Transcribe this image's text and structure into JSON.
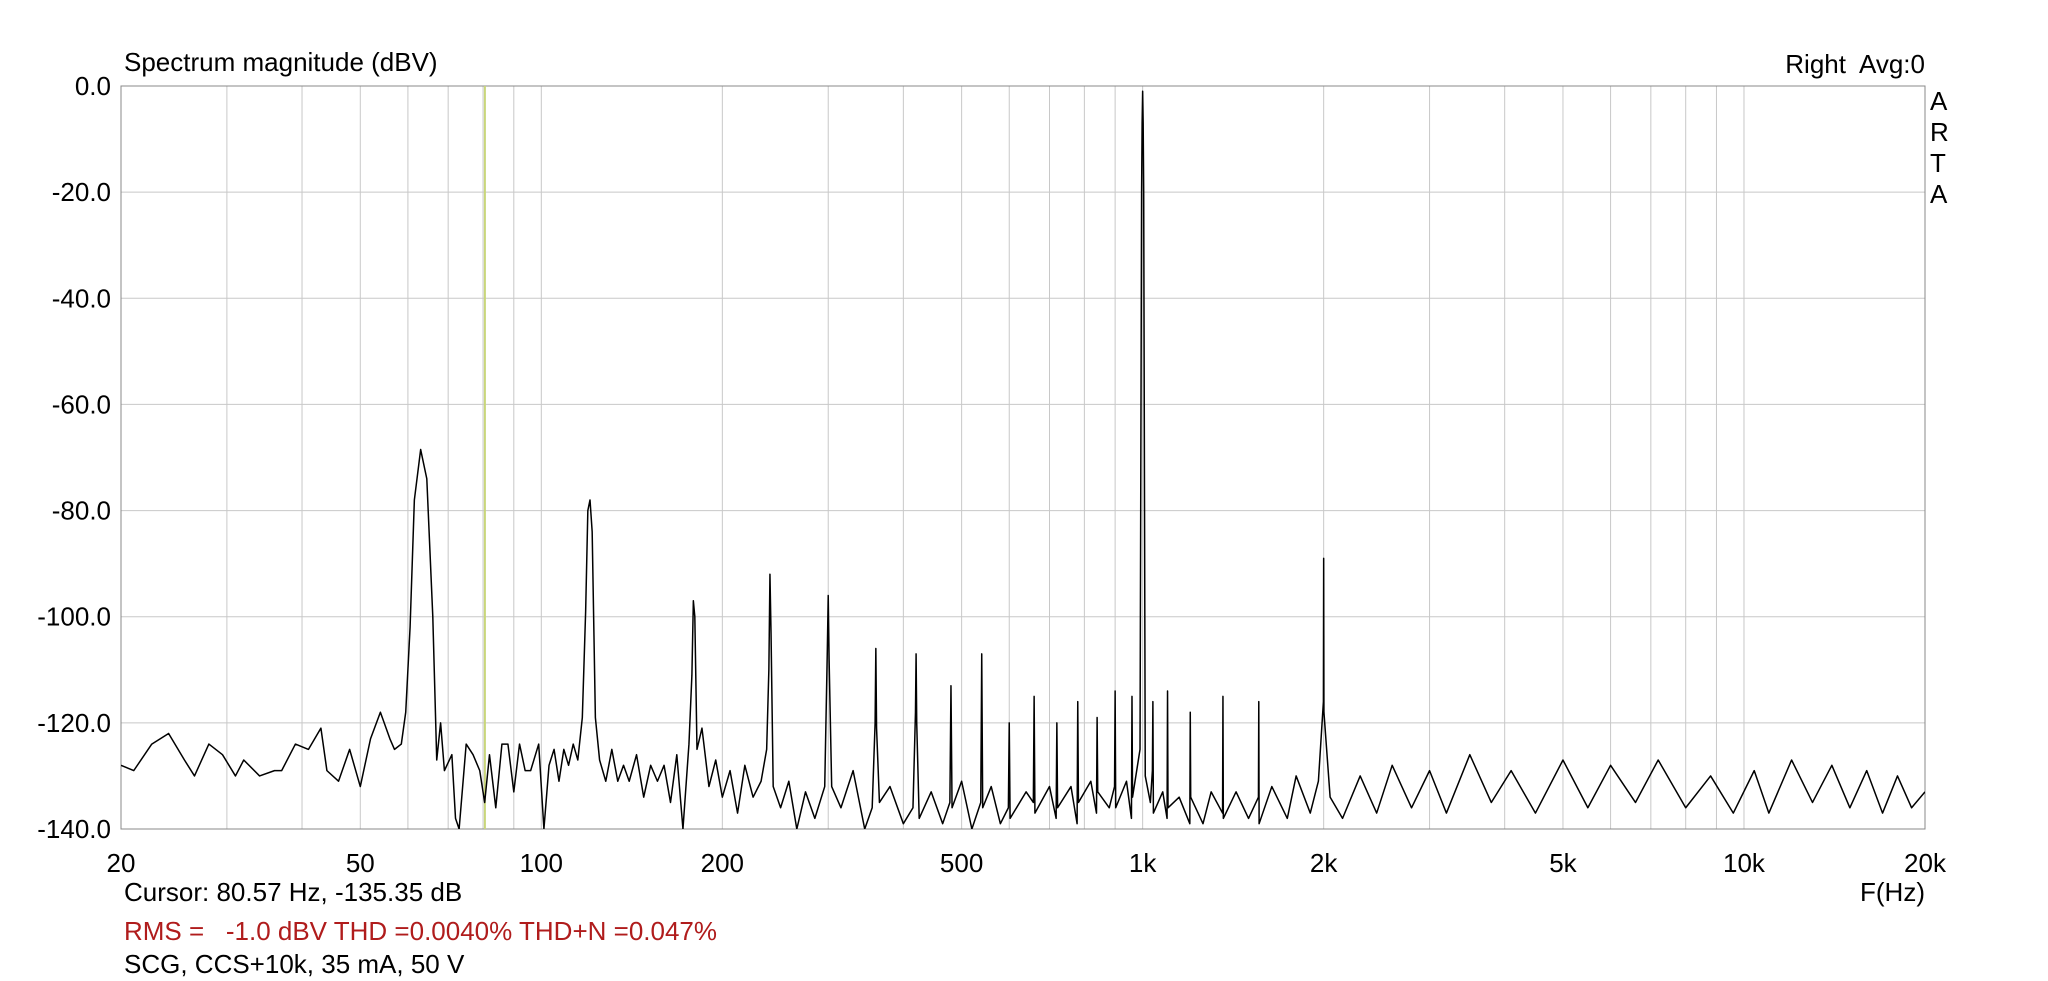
{
  "chart_data": {
    "type": "line",
    "title": "Spectrum magnitude (dBV)",
    "channel_label": "Right  Avg:0",
    "brand": [
      "A",
      "R",
      "T",
      "A"
    ],
    "xlabel": "F(Hz)",
    "xscale": "log",
    "grid": true,
    "color": "#000000",
    "xlim": [
      20,
      20000
    ],
    "ylim": [
      -140,
      0
    ],
    "xticks": [
      20,
      50,
      100,
      200,
      500,
      {
        "value": 1000,
        "label": "1k"
      },
      {
        "value": 2000,
        "label": "2k"
      },
      {
        "value": 5000,
        "label": "5k"
      },
      {
        "value": 10000,
        "label": "10k"
      },
      {
        "value": 20000,
        "label": "20k"
      }
    ],
    "xgrid_minor": [
      30,
      40,
      60,
      70,
      80,
      90,
      300,
      400,
      600,
      700,
      800,
      900,
      3000,
      4000,
      6000,
      7000,
      8000,
      9000
    ],
    "yticks": [
      {
        "value": 0,
        "label": "0.0"
      },
      {
        "value": -20,
        "label": "-20.0"
      },
      {
        "value": -40,
        "label": "-40.0"
      },
      {
        "value": -60,
        "label": "-60.0"
      },
      {
        "value": -80,
        "label": "-80.0"
      },
      {
        "value": -100,
        "label": "-100.0"
      },
      {
        "value": -120,
        "label": "-120.0"
      },
      {
        "value": -140,
        "label": "-140.0"
      }
    ],
    "cursor": {
      "x": 80.57,
      "color": "#c9d67a",
      "label": "Cursor: 80.57 Hz, -135.35 dB"
    },
    "measurement": "RMS =   -1.0 dBV THD =0.0040% THD+N =0.047%",
    "measurement_color": "#b01c1c",
    "note": "SCG, CCS+10k, 35 mA, 50 V",
    "x": [
      20,
      21,
      22.5,
      24,
      25.5,
      26.5,
      28,
      29.5,
      31,
      32,
      34,
      36,
      37,
      39,
      41,
      43,
      44,
      46,
      48,
      50,
      52,
      54,
      56,
      57,
      58.5,
      59.5,
      60.5,
      61.5,
      63,
      64.5,
      66,
      67,
      68,
      69,
      71,
      72,
      73,
      75,
      77,
      79,
      80.5,
      82,
      84,
      86,
      88,
      90,
      92,
      94,
      96,
      99,
      101,
      103,
      105,
      107,
      109,
      111,
      113,
      115,
      117,
      118.5,
      119.5,
      120.5,
      121.5,
      123,
      125,
      128,
      131,
      134,
      137,
      140,
      144,
      148,
      152,
      156,
      160,
      164,
      168,
      172,
      176,
      178,
      179,
      180,
      181.5,
      185,
      190,
      195,
      200,
      206,
      212,
      218,
      225,
      232,
      237,
      239,
      240,
      241,
      243,
      250,
      258,
      266,
      275,
      285,
      296,
      299,
      300,
      301,
      304,
      315,
      330,
      345,
      355,
      359,
      360,
      361,
      365,
      380,
      400,
      415,
      419,
      420,
      421,
      425,
      445,
      465,
      478,
      480,
      482,
      500,
      520,
      538,
      540,
      542,
      560,
      580,
      598,
      600,
      602,
      640,
      658,
      660,
      662,
      700,
      718,
      720,
      722,
      760,
      778,
      780,
      782,
      820,
      838,
      840,
      842,
      880,
      898,
      900,
      902,
      940,
      958,
      960,
      962,
      990,
      996,
      998,
      1000,
      1002,
      1004,
      1010,
      1030,
      1038,
      1040,
      1042,
      1080,
      1098,
      1100,
      1102,
      1150,
      1198,
      1200,
      1202,
      1260,
      1300,
      1358,
      1360,
      1362,
      1430,
      1500,
      1558,
      1560,
      1562,
      1640,
      1740,
      1800,
      1900,
      1960,
      1998,
      2000,
      2002,
      2050,
      2150,
      2300,
      2450,
      2600,
      2800,
      3000,
      3200,
      3500,
      3800,
      4100,
      4500,
      5000,
      5500,
      6000,
      6600,
      7200,
      8000,
      8800,
      9600,
      10400,
      11000,
      12000,
      13000,
      14000,
      15000,
      16000,
      17000,
      18000,
      19000,
      20000
    ],
    "values": [
      -128,
      -129,
      -124,
      -122,
      -127,
      -130,
      -124,
      -126,
      -130,
      -127,
      -130,
      -129,
      -129,
      -124,
      -125,
      -121,
      -129,
      -131,
      -125,
      -132,
      -123,
      -118,
      -123,
      -125,
      -124,
      -118,
      -102,
      -78,
      -68.5,
      -74,
      -100,
      -127,
      -120,
      -129,
      -126,
      -138,
      -140,
      -124,
      -126,
      -129,
      -135,
      -126,
      -136,
      -124,
      -124,
      -133,
      -124,
      -129,
      -129,
      -124,
      -140,
      -128,
      -125,
      -131,
      -125,
      -128,
      -124,
      -127,
      -119,
      -99,
      -80,
      -78,
      -84,
      -119,
      -127,
      -131,
      -125,
      -131,
      -128,
      -131,
      -126,
      -134,
      -128,
      -131,
      -128,
      -135,
      -126,
      -140,
      -124,
      -111,
      -97,
      -100,
      -125,
      -121,
      -132,
      -127,
      -134,
      -129,
      -137,
      -128,
      -134,
      -131,
      -125,
      -110,
      -92,
      -103,
      -132,
      -136,
      -131,
      -140,
      -133,
      -138,
      -132,
      -106,
      -96,
      -108,
      -132,
      -136,
      -129,
      -140,
      -136,
      -120,
      -106,
      -121,
      -135,
      -132,
      -139,
      -136,
      -118,
      -107,
      -120,
      -138,
      -133,
      -139,
      -135,
      -113,
      -136,
      -131,
      -140,
      -135,
      -107,
      -136,
      -132,
      -139,
      -136,
      -120,
      -138,
      -133,
      -135,
      -115,
      -137,
      -132,
      -138,
      -120,
      -136,
      -132,
      -139,
      -116,
      -135,
      -131,
      -137,
      -119,
      -133,
      -136,
      -132,
      -114,
      -136,
      -131,
      -138,
      -115,
      -134,
      -125,
      -20,
      -7,
      -1,
      -7,
      -20,
      -130,
      -135,
      -129,
      -116,
      -137,
      -133,
      -138,
      -114,
      -136,
      -134,
      -139,
      -118,
      -134,
      -139,
      -133,
      -137,
      -115,
      -138,
      -133,
      -138,
      -134,
      -116,
      -139,
      -132,
      -138,
      -130,
      -137,
      -131,
      -116,
      -89,
      -118,
      -134,
      -138,
      -130,
      -137,
      -128,
      -136,
      -129,
      -137,
      -126,
      -135,
      -129,
      -137,
      -127,
      -136,
      -128,
      -135,
      -127,
      -136,
      -130,
      -137,
      -129,
      -137,
      -127,
      -135,
      -128,
      -136,
      -129,
      -137,
      -130,
      -136,
      -133
    ]
  }
}
